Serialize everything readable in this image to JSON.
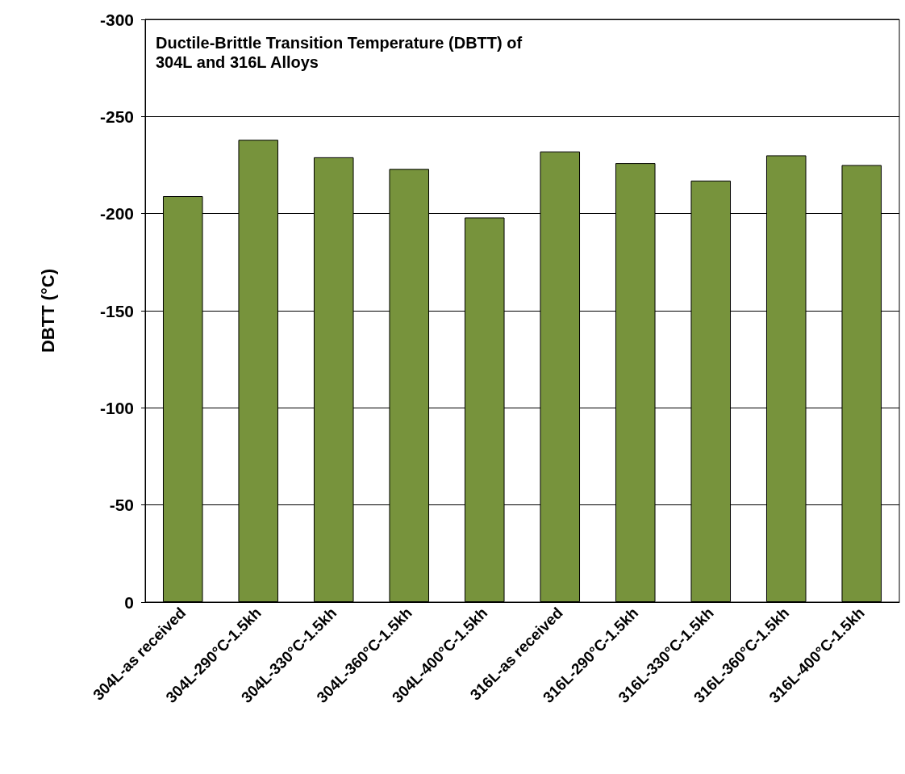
{
  "chart_data": {
    "type": "bar",
    "title": "Ductile-Brittle Transition Temperature (DBTT) of 304L and 316L Alloys",
    "ylabel": "DBTT (°C)",
    "categories": [
      "304L-as received",
      "304L-290°C-1.5kh",
      "304L-330°C-1.5kh",
      "304L-360°C-1.5kh",
      "304L-400°C-1.5kh",
      "316L-as received",
      "316L-290°C-1.5kh",
      "316L-330°C-1.5kh",
      "316L-360°C-1.5kh",
      "316L-400°C-1.5kh"
    ],
    "values": [
      -209,
      -238,
      -229,
      -223,
      -198,
      -232,
      -226,
      -217,
      -230,
      -225
    ],
    "color": "#77933c",
    "ylim": [
      0,
      -300
    ],
    "yticks": [
      0,
      -50,
      -100,
      -150,
      -200,
      -250,
      -300
    ],
    "grid": "y"
  }
}
